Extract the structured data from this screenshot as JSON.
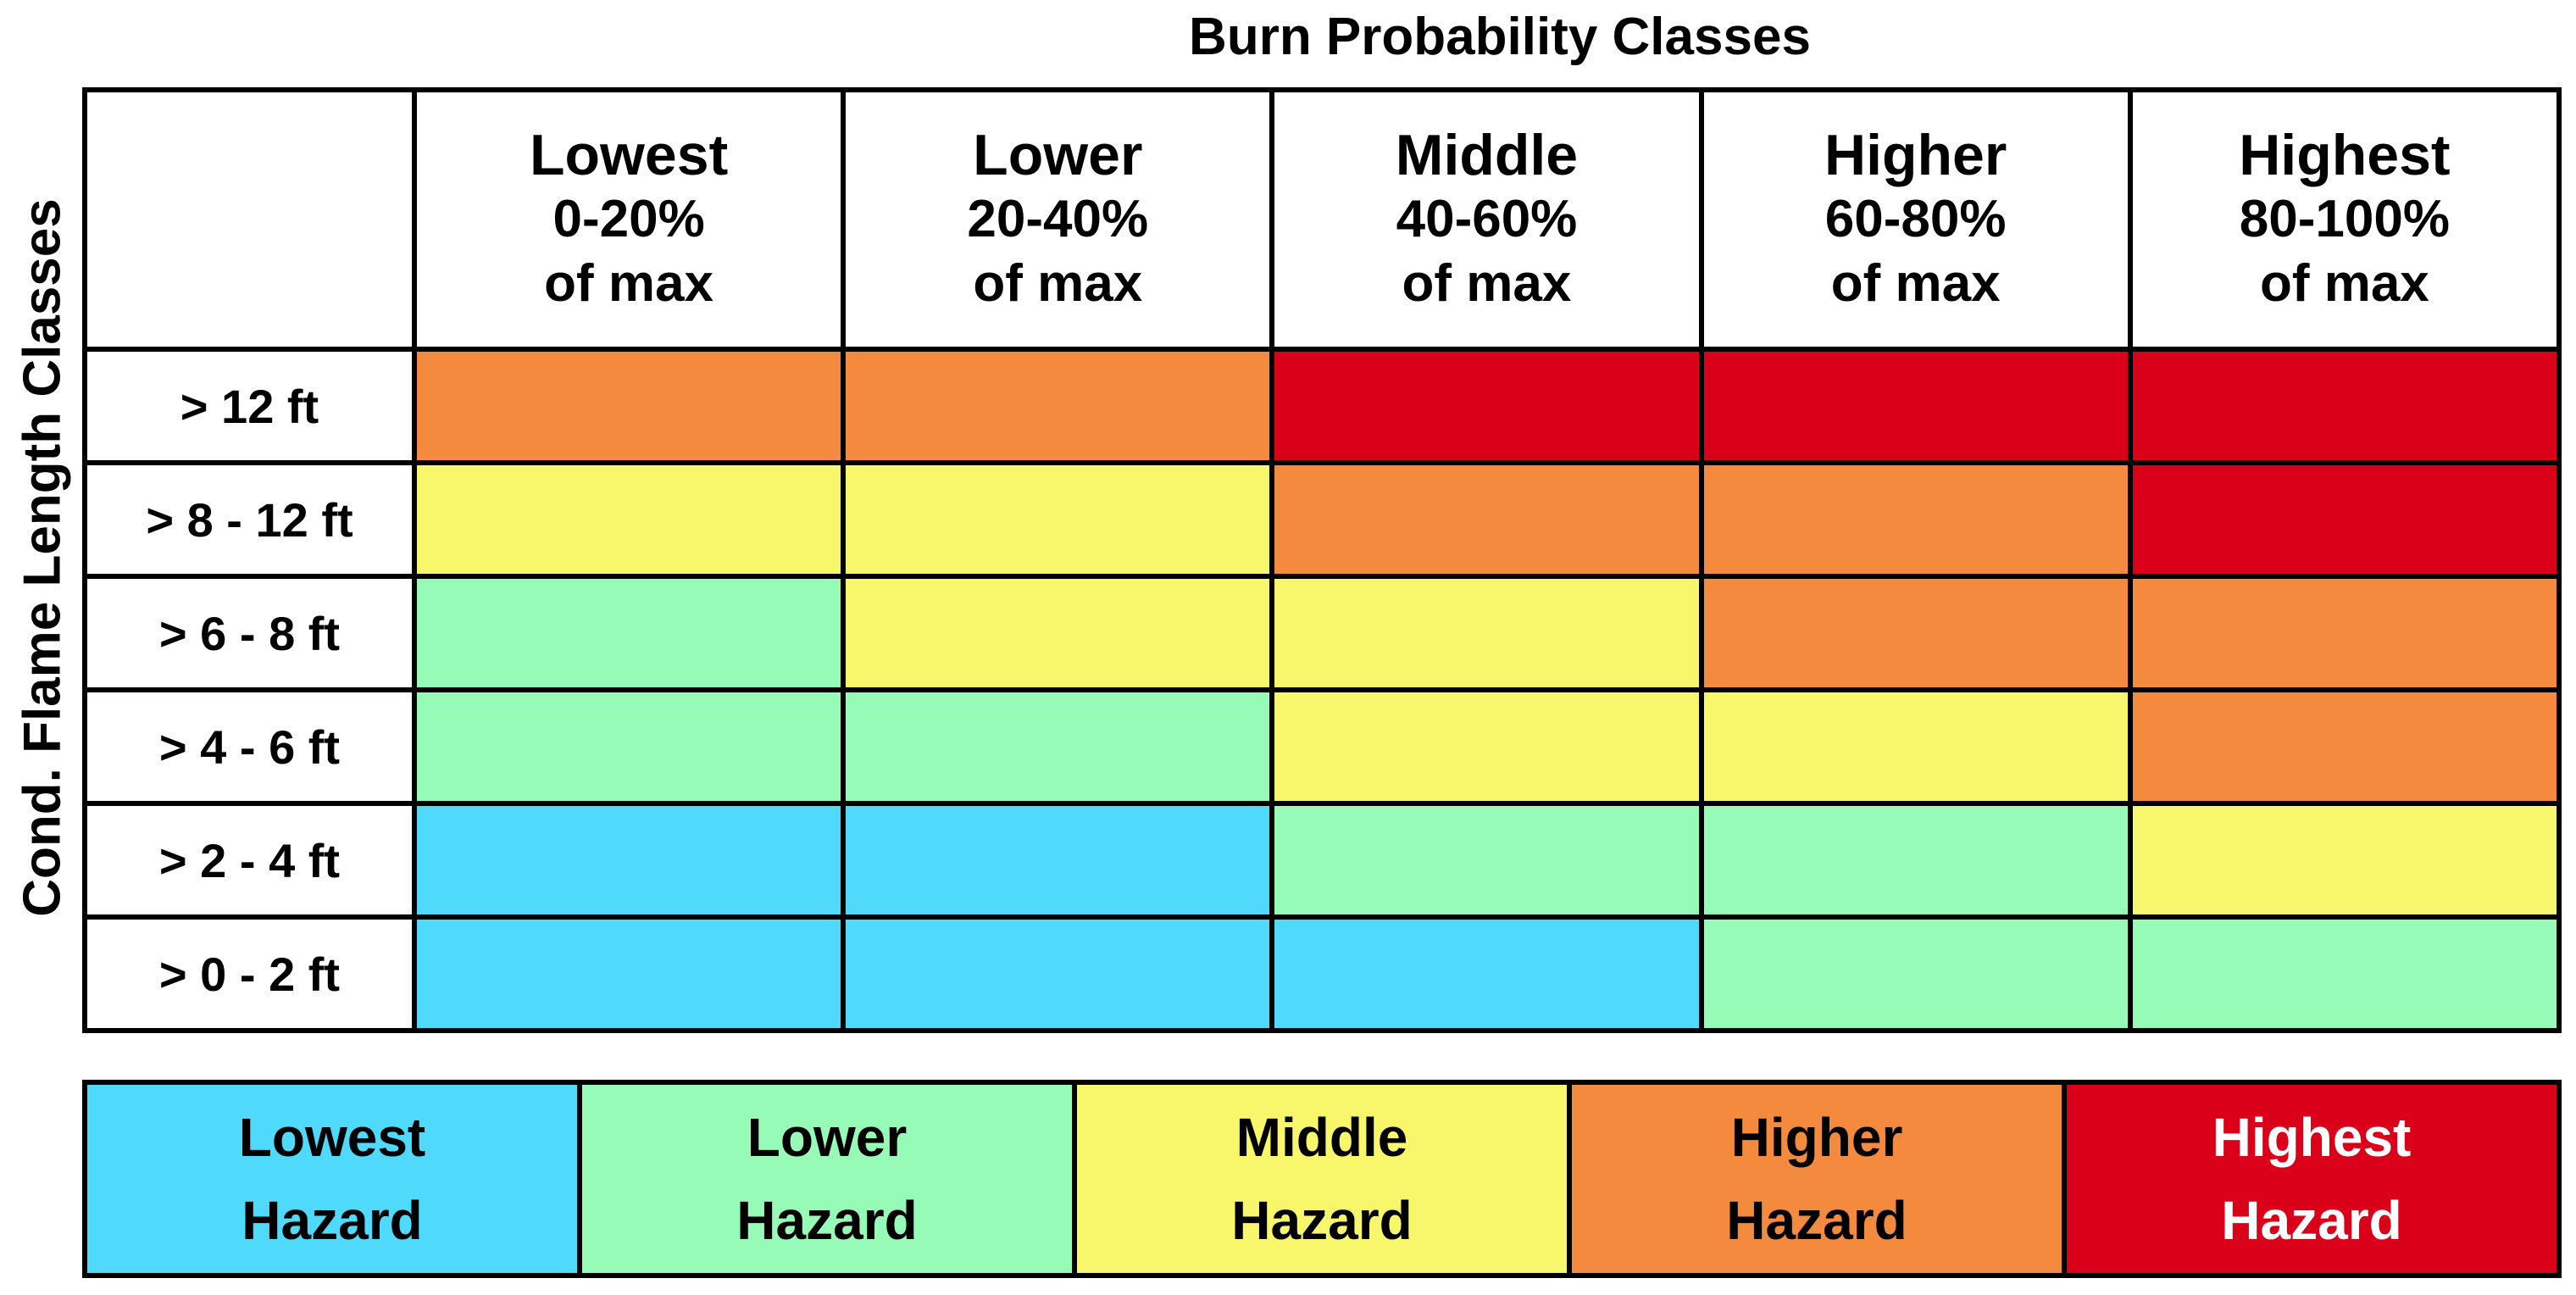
{
  "chart_data": {
    "type": "heatmap",
    "title": "Burn Probability Classes",
    "ylabel": "Cond. Flame Length Classes",
    "columns": [
      {
        "label": "Lowest",
        "range": "0-20%",
        "suffix": "of max"
      },
      {
        "label": "Lower",
        "range": "20-40%",
        "suffix": "of max"
      },
      {
        "label": "Middle",
        "range": "40-60%",
        "suffix": "of max"
      },
      {
        "label": "Higher",
        "range": "60-80%",
        "suffix": "of max"
      },
      {
        "label": "Highest",
        "range": "80-100%",
        "suffix": "of max"
      }
    ],
    "rows": [
      "> 12 ft",
      "> 8 - 12 ft",
      "> 6 - 8 ft",
      "> 4 - 6 ft",
      "> 2 - 4 ft",
      "> 0 - 2 ft"
    ],
    "matrix": [
      [
        4,
        4,
        5,
        5,
        5
      ],
      [
        3,
        3,
        4,
        4,
        5
      ],
      [
        2,
        3,
        3,
        4,
        4
      ],
      [
        2,
        2,
        3,
        3,
        4
      ],
      [
        1,
        1,
        2,
        2,
        3
      ],
      [
        1,
        1,
        1,
        2,
        2
      ]
    ],
    "legend": [
      {
        "level": 1,
        "line1": "Lowest",
        "line2": "Hazard",
        "color": "#4fd9fb",
        "text_color": "#000000"
      },
      {
        "level": 2,
        "line1": "Lower",
        "line2": "Hazard",
        "color": "#97fbb8",
        "text_color": "#000000"
      },
      {
        "level": 3,
        "line1": "Middle",
        "line2": "Hazard",
        "color": "#f8f76c",
        "text_color": "#000000"
      },
      {
        "level": 4,
        "line1": "Higher",
        "line2": "Hazard",
        "color": "#f38a3e",
        "text_color": "#000000"
      },
      {
        "level": 5,
        "line1": "Highest",
        "line2": "Hazard",
        "color": "#db0019",
        "text_color": "#ffffff"
      }
    ]
  }
}
